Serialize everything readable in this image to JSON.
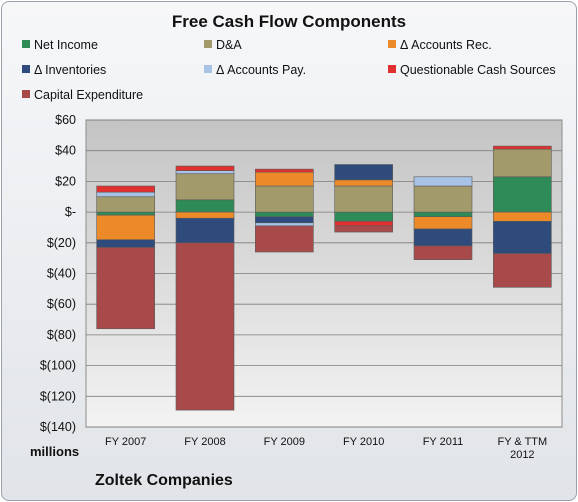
{
  "chart_data": {
    "type": "bar",
    "stacked": true,
    "title": "Free Cash Flow Components",
    "unit_label": "millions",
    "footer": "Zoltek Companies",
    "categories": [
      "FY 2007",
      "FY 2008",
      "FY 2009",
      "FY 2010",
      "FY 2011",
      "FY & TTM\n2012"
    ],
    "ylim": [
      -140,
      60
    ],
    "yticks": [
      60,
      40,
      20,
      0,
      -20,
      -40,
      -60,
      -80,
      -100,
      -120,
      -140
    ],
    "ytick_labels": [
      "$60",
      "$40",
      "$20",
      "$-",
      "$(20)",
      "$(40)",
      "$(60)",
      "$(80)",
      "$(100)",
      "$(120)",
      "$(140)"
    ],
    "legend_position": "top",
    "series": [
      {
        "name": "Net Income",
        "color": "#2e8b57",
        "values": [
          -2,
          8,
          -3,
          -6,
          -3,
          23
        ]
      },
      {
        "name": "D&A",
        "color": "#a39a6b",
        "values": [
          10,
          17,
          17,
          17,
          17,
          18
        ]
      },
      {
        "name": "Δ Accounts Rec.",
        "color": "#ec8a2a",
        "values": [
          -16,
          -4,
          9,
          4,
          -8,
          -6
        ]
      },
      {
        "name": "Δ Inventories",
        "color": "#2f4b7c",
        "values": [
          -5,
          -16,
          -4,
          10,
          -11,
          -21
        ]
      },
      {
        "name": "Δ Accounts Pay.",
        "color": "#a9c3e6",
        "values": [
          3,
          2,
          -2,
          0,
          6,
          0
        ]
      },
      {
        "name": "Questionable Cash Sources",
        "color": "#e03030",
        "values": [
          4,
          3,
          2,
          -3,
          0,
          2
        ]
      },
      {
        "name": "Capital Expenditure",
        "color": "#a84a4a",
        "values": [
          -53,
          -109,
          -17,
          -4,
          -9,
          -22
        ]
      }
    ]
  }
}
